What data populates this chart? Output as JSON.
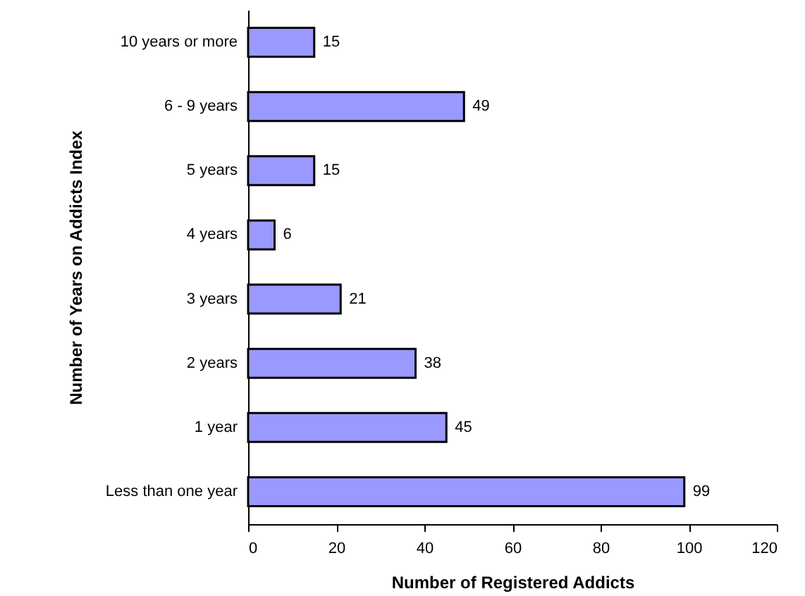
{
  "chart_data": {
    "type": "bar",
    "orientation": "horizontal",
    "xlabel": "Number of Registered Addicts",
    "ylabel": "Number of Years on Addicts Index",
    "categories": [
      "10 years or more",
      "6 - 9 years",
      "5 years",
      "4 years",
      "3 years",
      "2 years",
      "1 year",
      "Less than one year"
    ],
    "values": [
      15,
      49,
      15,
      6,
      21,
      38,
      45,
      99
    ],
    "color": "#9999ff",
    "data_labels": true,
    "xlim": [
      0,
      120
    ],
    "xticks": [
      0,
      20,
      40,
      60,
      80,
      100,
      120
    ],
    "grid": false
  }
}
